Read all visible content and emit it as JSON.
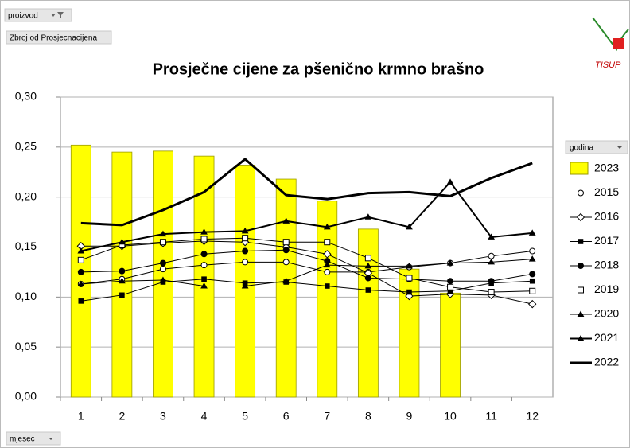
{
  "ui": {
    "filter_button": "proizvod",
    "value_field": "Zbroj od Prosjecnacijena",
    "legend_button": "godina",
    "axis_button": "mjesec",
    "logo_text": "TISUP"
  },
  "chart_data": {
    "type": "combo",
    "title": "Prosječne cijene za pšenično krmno brašno",
    "categories": [
      "1",
      "2",
      "3",
      "4",
      "5",
      "6",
      "7",
      "8",
      "9",
      "10",
      "11",
      "12"
    ],
    "ylim": [
      0,
      0.3
    ],
    "yticks": [
      {
        "value": 0,
        "label": "0,00"
      },
      {
        "value": 0.05,
        "label": "0,05"
      },
      {
        "value": 0.1,
        "label": "0,10"
      },
      {
        "value": 0.15,
        "label": "0,15"
      },
      {
        "value": 0.2,
        "label": "0,20"
      },
      {
        "value": 0.25,
        "label": "0,25"
      },
      {
        "value": 0.3,
        "label": "0,30"
      }
    ],
    "grid": true,
    "legend": "right",
    "series": [
      {
        "name": "2023",
        "type": "bar",
        "color": "#ffff00",
        "values": [
          0.252,
          0.245,
          0.246,
          0.241,
          0.232,
          0.218,
          0.196,
          0.168,
          0.128,
          0.104,
          null,
          null
        ]
      },
      {
        "name": "2015",
        "type": "line",
        "color": "#000000",
        "marker": "circle-open",
        "line_width": 1,
        "values": [
          0.113,
          0.118,
          0.128,
          0.132,
          0.135,
          0.135,
          0.125,
          0.125,
          0.13,
          0.134,
          0.141,
          0.146
        ]
      },
      {
        "name": "2016",
        "type": "line",
        "color": "#000000",
        "marker": "diamond-open",
        "line_width": 1,
        "values": [
          0.151,
          0.151,
          0.154,
          0.156,
          0.155,
          0.15,
          0.143,
          0.124,
          0.101,
          0.103,
          0.102,
          0.093
        ]
      },
      {
        "name": "2017",
        "type": "line",
        "color": "#000000",
        "marker": "square",
        "line_width": 1,
        "values": [
          0.096,
          0.102,
          0.115,
          0.118,
          0.114,
          0.115,
          0.111,
          0.107,
          0.105,
          0.106,
          0.114,
          0.116
        ]
      },
      {
        "name": "2018",
        "type": "line",
        "color": "#000000",
        "marker": "circle",
        "line_width": 1,
        "values": [
          0.125,
          0.126,
          0.134,
          0.143,
          0.146,
          0.147,
          0.136,
          0.119,
          0.118,
          0.116,
          0.116,
          0.123
        ]
      },
      {
        "name": "2019",
        "type": "line",
        "color": "#000000",
        "marker": "square-open",
        "line_width": 1,
        "values": [
          0.137,
          0.152,
          0.155,
          0.158,
          0.159,
          0.155,
          0.155,
          0.139,
          0.119,
          0.11,
          0.105,
          0.106
        ]
      },
      {
        "name": "2020",
        "type": "line",
        "color": "#000000",
        "marker": "triangle",
        "line_width": 1,
        "values": [
          0.113,
          0.116,
          0.117,
          0.111,
          0.111,
          0.116,
          0.132,
          0.131,
          0.131,
          0.134,
          0.135,
          0.138
        ]
      },
      {
        "name": "2021",
        "type": "line",
        "color": "#000000",
        "marker": "triangle",
        "line_width": 2,
        "values": [
          0.146,
          0.155,
          0.163,
          0.165,
          0.166,
          0.176,
          0.17,
          0.18,
          0.17,
          0.215,
          0.16,
          0.164
        ]
      },
      {
        "name": "2022",
        "type": "line",
        "color": "#000000",
        "marker": "none",
        "line_width": 3,
        "values": [
          0.174,
          0.172,
          0.187,
          0.205,
          0.238,
          0.202,
          0.198,
          0.204,
          0.205,
          0.201,
          0.219,
          0.234
        ]
      }
    ]
  }
}
